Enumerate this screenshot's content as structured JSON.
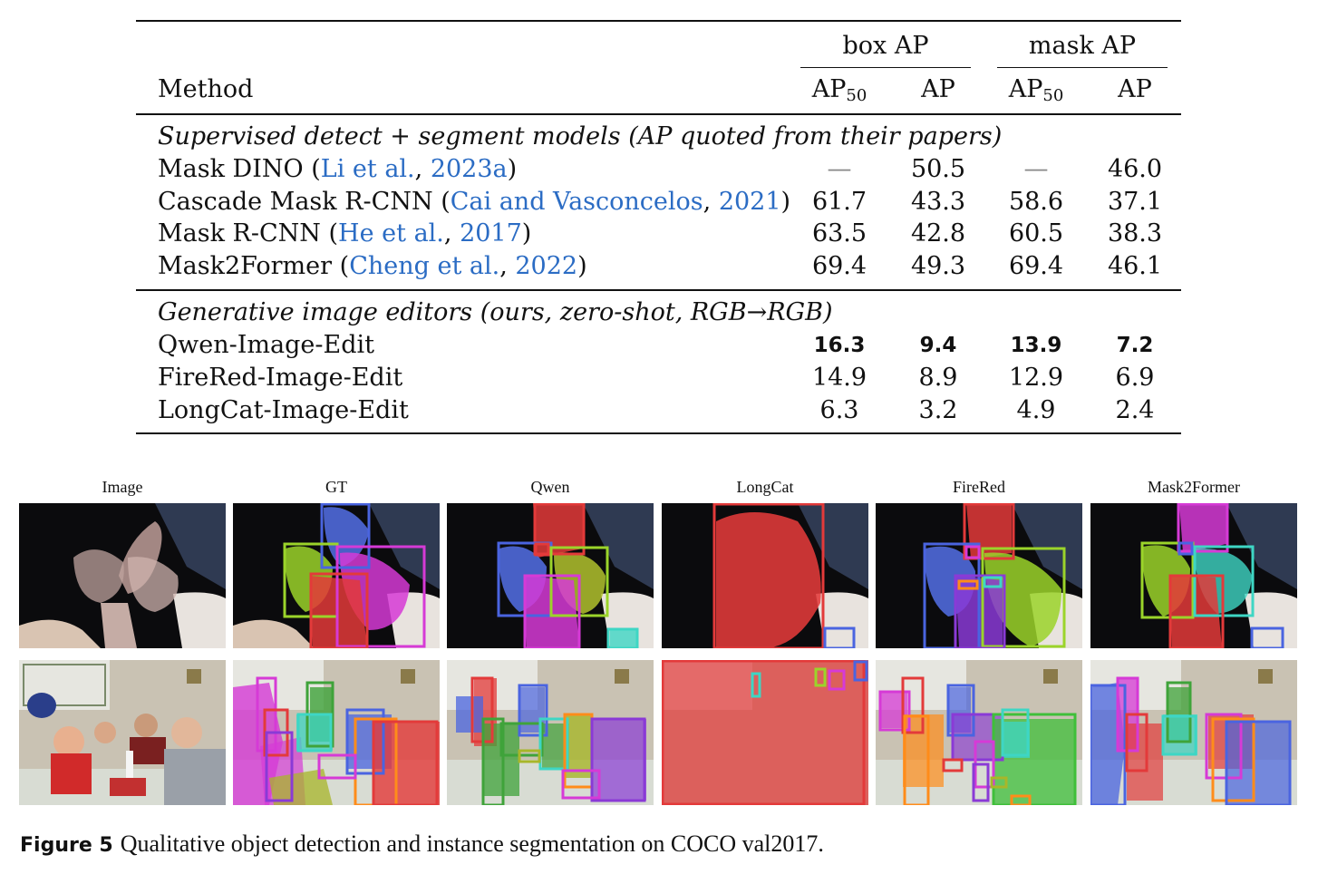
{
  "table": {
    "header": {
      "method": "Method",
      "box_group": "box AP",
      "mask_group": "mask AP",
      "ap50": "AP",
      "ap50_sub": "50",
      "ap": "AP"
    },
    "sections": [
      {
        "title": "Supervised detect + segment models (AP quoted from their papers)",
        "rows": [
          {
            "name": "Mask DINO",
            "cite_pre": "(",
            "cite_author": "Li et al.",
            "cite_sep": ", ",
            "cite_year": "2023a",
            "cite_post": ")",
            "box_ap50": "—",
            "box_ap": "50.5",
            "mask_ap50": "—",
            "mask_ap": "46.0"
          },
          {
            "name": "Cascade Mask R-CNN",
            "cite_pre": "(",
            "cite_author": "Cai and Vasconcelos",
            "cite_sep": ", ",
            "cite_year": "2021",
            "cite_post": ")",
            "box_ap50": "61.7",
            "box_ap": "43.3",
            "mask_ap50": "58.6",
            "mask_ap": "37.1"
          },
          {
            "name": "Mask R-CNN",
            "cite_pre": "(",
            "cite_author": "He et al.",
            "cite_sep": ", ",
            "cite_year": "2017",
            "cite_post": ")",
            "box_ap50": "63.5",
            "box_ap": "42.8",
            "mask_ap50": "60.5",
            "mask_ap": "38.3"
          },
          {
            "name": "Mask2Former",
            "cite_pre": "(",
            "cite_author": "Cheng et al.",
            "cite_sep": ", ",
            "cite_year": "2022",
            "cite_post": ")",
            "box_ap50": "69.4",
            "box_ap": "49.3",
            "mask_ap50": "69.4",
            "mask_ap": "46.1"
          }
        ]
      },
      {
        "title": "Generative image editors (ours, zero-shot, RGB→RGB)",
        "rows": [
          {
            "name": "Qwen-Image-Edit",
            "box_ap50": "16.3",
            "box_ap": "9.4",
            "mask_ap50": "13.9",
            "mask_ap": "7.2",
            "bold": true
          },
          {
            "name": "FireRed-Image-Edit",
            "box_ap50": "14.9",
            "box_ap": "8.9",
            "mask_ap50": "12.9",
            "mask_ap": "6.9"
          },
          {
            "name": "LongCat-Image-Edit",
            "box_ap50": "6.3",
            "box_ap": "3.2",
            "mask_ap50": "4.9",
            "mask_ap": "2.4"
          }
        ]
      }
    ]
  },
  "figure": {
    "columns": [
      "Image",
      "GT",
      "Qwen",
      "LongCat",
      "FireRed",
      "Mask2Former"
    ],
    "caption_label": "Figure 5",
    "caption_text": "Qualitative object detection and instance segmentation on COCO val2017."
  }
}
